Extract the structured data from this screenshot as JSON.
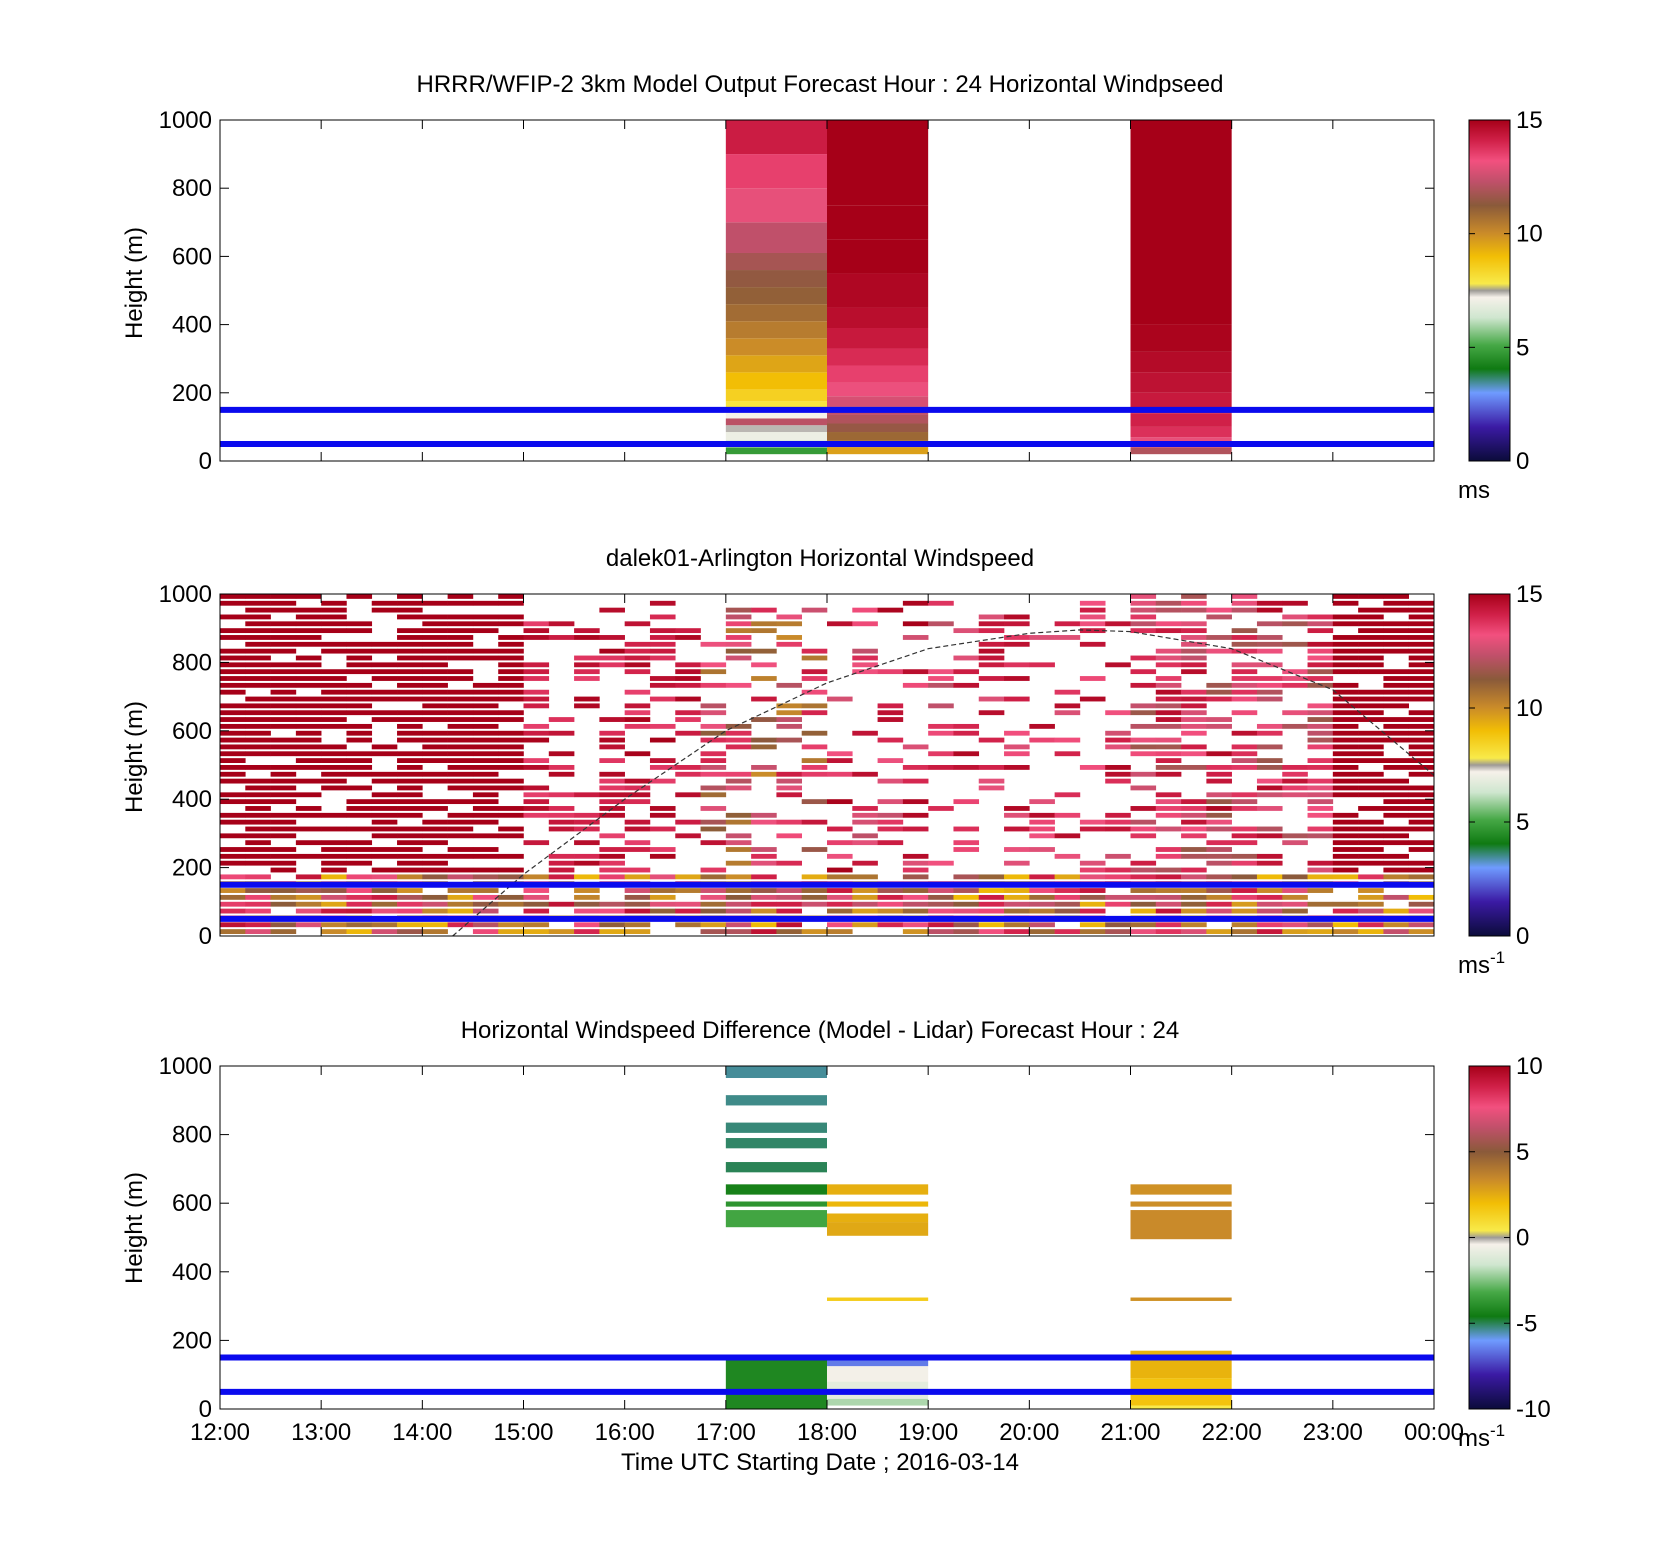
{
  "figure": {
    "xlabel": "Time UTC  Starting Date ; 2016-03-14",
    "x_ticks": [
      "12:00",
      "13:00",
      "14:00",
      "15:00",
      "16:00",
      "17:00",
      "18:00",
      "19:00",
      "20:00",
      "21:00",
      "22:00",
      "23:00",
      "00:00"
    ],
    "reference_lines_m": [
      50,
      150
    ],
    "reference_line_color": "#0a0aee"
  },
  "chart_data": [
    {
      "type": "heatmap",
      "title": "HRRR/WFIP-2 3km Model Output   Forecast Hour : 24 Horizontal Windpseed",
      "ylabel": "Height (m)",
      "xlim_hours": [
        12,
        24
      ],
      "ylim": [
        0,
        1000
      ],
      "y_ticks": [
        "0",
        "200",
        "400",
        "600",
        "800",
        "1000"
      ],
      "colorbar": {
        "ticks": [
          "0",
          "5",
          "10",
          "15"
        ],
        "range": [
          0,
          15
        ],
        "unit": "ms",
        "unit_sup": ""
      },
      "columns": [
        {
          "hour_start": 17,
          "hour_end": 18,
          "rows": [
            {
              "z0": 20,
              "z1": 40,
              "v": 4.8
            },
            {
              "z0": 40,
              "z1": 60,
              "v": 6.2
            },
            {
              "z0": 60,
              "z1": 85,
              "v": 7.0
            },
            {
              "z0": 85,
              "z1": 105,
              "v": 7.4
            },
            {
              "z0": 105,
              "z1": 125,
              "v": 12.2
            },
            {
              "z0": 125,
              "z1": 155,
              "v": 7.2
            },
            {
              "z0": 155,
              "z1": 175,
              "v": 8.0
            },
            {
              "z0": 175,
              "z1": 210,
              "v": 8.5
            },
            {
              "z0": 210,
              "z1": 260,
              "v": 9.0
            },
            {
              "z0": 260,
              "z1": 310,
              "v": 9.5
            },
            {
              "z0": 310,
              "z1": 360,
              "v": 10.0
            },
            {
              "z0": 360,
              "z1": 410,
              "v": 10.4
            },
            {
              "z0": 410,
              "z1": 460,
              "v": 10.8
            },
            {
              "z0": 460,
              "z1": 510,
              "v": 11.1
            },
            {
              "z0": 510,
              "z1": 560,
              "v": 11.4
            },
            {
              "z0": 560,
              "z1": 610,
              "v": 11.8
            },
            {
              "z0": 610,
              "z1": 700,
              "v": 12.3
            },
            {
              "z0": 700,
              "z1": 800,
              "v": 13.0
            },
            {
              "z0": 800,
              "z1": 900,
              "v": 13.5
            },
            {
              "z0": 900,
              "z1": 1000,
              "v": 14.2
            }
          ]
        },
        {
          "hour_start": 18,
          "hour_end": 19,
          "rows": [
            {
              "z0": 20,
              "z1": 40,
              "v": 9.6
            },
            {
              "z0": 40,
              "z1": 60,
              "v": 10.2
            },
            {
              "z0": 60,
              "z1": 85,
              "v": 10.9
            },
            {
              "z0": 85,
              "z1": 110,
              "v": 11.5
            },
            {
              "z0": 110,
              "z1": 135,
              "v": 12.0
            },
            {
              "z0": 135,
              "z1": 160,
              "v": 12.3
            },
            {
              "z0": 160,
              "z1": 190,
              "v": 12.7
            },
            {
              "z0": 190,
              "z1": 230,
              "v": 13.1
            },
            {
              "z0": 230,
              "z1": 280,
              "v": 13.5
            },
            {
              "z0": 280,
              "z1": 330,
              "v": 13.9
            },
            {
              "z0": 330,
              "z1": 390,
              "v": 14.3
            },
            {
              "z0": 390,
              "z1": 450,
              "v": 14.6
            },
            {
              "z0": 450,
              "z1": 550,
              "v": 14.8
            },
            {
              "z0": 550,
              "z1": 650,
              "v": 15.0
            },
            {
              "z0": 650,
              "z1": 750,
              "v": 15.0
            },
            {
              "z0": 750,
              "z1": 1000,
              "v": 15.0
            }
          ]
        },
        {
          "hour_start": 21,
          "hour_end": 22,
          "rows": [
            {
              "z0": 20,
              "z1": 40,
              "v": 12.0
            },
            {
              "z0": 40,
              "z1": 70,
              "v": 13.0
            },
            {
              "z0": 70,
              "z1": 100,
              "v": 13.8
            },
            {
              "z0": 100,
              "z1": 140,
              "v": 14.1
            },
            {
              "z0": 140,
              "z1": 200,
              "v": 14.3
            },
            {
              "z0": 200,
              "z1": 260,
              "v": 14.5
            },
            {
              "z0": 260,
              "z1": 320,
              "v": 14.7
            },
            {
              "z0": 320,
              "z1": 400,
              "v": 14.9
            },
            {
              "z0": 400,
              "z1": 1000,
              "v": 15.0
            }
          ]
        }
      ]
    },
    {
      "type": "heatmap",
      "title": "dalek01-Arlington  Horizontal Windspeed",
      "ylabel": "Height (m)",
      "xlim_hours": [
        12,
        24
      ],
      "ylim": [
        0,
        1000
      ],
      "y_ticks": [
        "0",
        "200",
        "400",
        "600",
        "800",
        "1000"
      ],
      "colorbar": {
        "ticks": [
          "0",
          "5",
          "10",
          "15"
        ],
        "range": [
          0,
          15
        ],
        "unit": "ms",
        "unit_sup": "-1"
      },
      "time_bin_minutes": 15,
      "height_bin_m": 20,
      "regimes": [
        {
          "hour_start": 12.0,
          "hour_end": 15.0,
          "top_m": 1000,
          "fill_fraction": 0.78,
          "low_ms": 15.0,
          "high_ms": 15.0
        },
        {
          "hour_start": 15.0,
          "hour_end": 16.75,
          "top_m": 980,
          "fill_fraction": 0.45,
          "low_ms": 13.5,
          "high_ms": 15.0
        },
        {
          "hour_start": 16.75,
          "hour_end": 18.0,
          "top_m": 960,
          "fill_fraction": 0.45,
          "low_ms": 10.0,
          "high_ms": 14.5
        },
        {
          "hour_start": 18.0,
          "hour_end": 19.25,
          "top_m": 980,
          "fill_fraction": 0.4,
          "low_ms": 12.0,
          "high_ms": 15.0
        },
        {
          "hour_start": 19.25,
          "hour_end": 21.0,
          "top_m": 980,
          "fill_fraction": 0.3,
          "low_ms": 12.5,
          "high_ms": 14.8
        },
        {
          "hour_start": 21.0,
          "hour_end": 23.0,
          "top_m": 1000,
          "fill_fraction": 0.62,
          "low_ms": 11.5,
          "high_ms": 14.8
        },
        {
          "hour_start": 23.0,
          "hour_end": 24.0,
          "top_m": 1000,
          "fill_fraction": 0.8,
          "low_ms": 15.0,
          "high_ms": 15.0
        }
      ],
      "near_surface_layer": {
        "top_m": 180,
        "low_ms": 9.0,
        "high_ms": 14.5
      },
      "dashed_curve": [
        {
          "h": 14.3,
          "z": 0
        },
        {
          "h": 15.0,
          "z": 180
        },
        {
          "h": 16.0,
          "z": 400
        },
        {
          "h": 17.0,
          "z": 600
        },
        {
          "h": 18.0,
          "z": 740
        },
        {
          "h": 19.0,
          "z": 840
        },
        {
          "h": 20.0,
          "z": 885
        },
        {
          "h": 20.5,
          "z": 895
        },
        {
          "h": 21.0,
          "z": 890
        },
        {
          "h": 22.0,
          "z": 840
        },
        {
          "h": 23.0,
          "z": 720
        },
        {
          "h": 24.0,
          "z": 470
        }
      ]
    },
    {
      "type": "heatmap",
      "title": "Horizontal Windspeed Difference (Model - Lidar) Forecast Hour : 24",
      "ylabel": "Height (m)",
      "xlim_hours": [
        12,
        24
      ],
      "ylim": [
        0,
        1000
      ],
      "y_ticks": [
        "0",
        "200",
        "400",
        "600",
        "800",
        "1000"
      ],
      "colorbar": {
        "ticks": [
          "-10",
          "-5",
          "0",
          "5",
          "10"
        ],
        "range": [
          -10,
          10
        ],
        "unit": "ms",
        "unit_sup": "-1"
      },
      "columns": [
        {
          "hour_start": 17,
          "hour_end": 18,
          "rows": [
            {
              "z0": 0,
              "z1": 150,
              "v": -4.2
            },
            {
              "z0": 530,
              "z1": 580,
              "v": -3.3
            },
            {
              "z0": 590,
              "z1": 605,
              "v": -3.8
            },
            {
              "z0": 625,
              "z1": 655,
              "v": -4.4
            },
            {
              "z0": 690,
              "z1": 720,
              "v": -5.0
            },
            {
              "z0": 760,
              "z1": 790,
              "v": -5.1
            },
            {
              "z0": 805,
              "z1": 835,
              "v": -5.2
            },
            {
              "z0": 885,
              "z1": 915,
              "v": -5.3
            },
            {
              "z0": 965,
              "z1": 1000,
              "v": -5.4
            }
          ]
        },
        {
          "hour_start": 18,
          "hour_end": 19,
          "rows": [
            {
              "z0": 10,
              "z1": 30,
              "v": -2.0
            },
            {
              "z0": 30,
              "z1": 80,
              "v": -1.0
            },
            {
              "z0": 80,
              "z1": 125,
              "v": -0.5
            },
            {
              "z0": 125,
              "z1": 150,
              "v": -6.5
            },
            {
              "z0": 315,
              "z1": 325,
              "v": 1.5
            },
            {
              "z0": 505,
              "z1": 545,
              "v": 2.6
            },
            {
              "z0": 545,
              "z1": 570,
              "v": 2.4
            },
            {
              "z0": 590,
              "z1": 605,
              "v": 2.2
            },
            {
              "z0": 625,
              "z1": 655,
              "v": 2.4
            }
          ]
        },
        {
          "hour_start": 21,
          "hour_end": 22,
          "rows": [
            {
              "z0": 0,
              "z1": 10,
              "v": 0.4
            },
            {
              "z0": 10,
              "z1": 90,
              "v": 1.8
            },
            {
              "z0": 90,
              "z1": 170,
              "v": 2.3
            },
            {
              "z0": 315,
              "z1": 325,
              "v": 3.2
            },
            {
              "z0": 495,
              "z1": 580,
              "v": 3.4
            },
            {
              "z0": 590,
              "z1": 605,
              "v": 3.3
            },
            {
              "z0": 625,
              "z1": 655,
              "v": 3.2
            }
          ]
        }
      ]
    }
  ],
  "colormap_stops": [
    {
      "f": 0.0,
      "c": "#0b0b3a"
    },
    {
      "f": 0.1,
      "c": "#3b1aa4"
    },
    {
      "f": 0.2,
      "c": "#6f9bff"
    },
    {
      "f": 0.27,
      "c": "#0f7a12"
    },
    {
      "f": 0.34,
      "c": "#46a846"
    },
    {
      "f": 0.42,
      "c": "#cfe6cf"
    },
    {
      "f": 0.48,
      "c": "#f6f1ea"
    },
    {
      "f": 0.5,
      "c": "#9d9a96"
    },
    {
      "f": 0.52,
      "c": "#f8ea4a"
    },
    {
      "f": 0.6,
      "c": "#f2be05"
    },
    {
      "f": 0.67,
      "c": "#c98a2a"
    },
    {
      "f": 0.75,
      "c": "#8a5a3a"
    },
    {
      "f": 0.82,
      "c": "#c0506a"
    },
    {
      "f": 0.88,
      "c": "#f2507f"
    },
    {
      "f": 0.94,
      "c": "#d02048"
    },
    {
      "f": 1.0,
      "c": "#a60018"
    }
  ]
}
